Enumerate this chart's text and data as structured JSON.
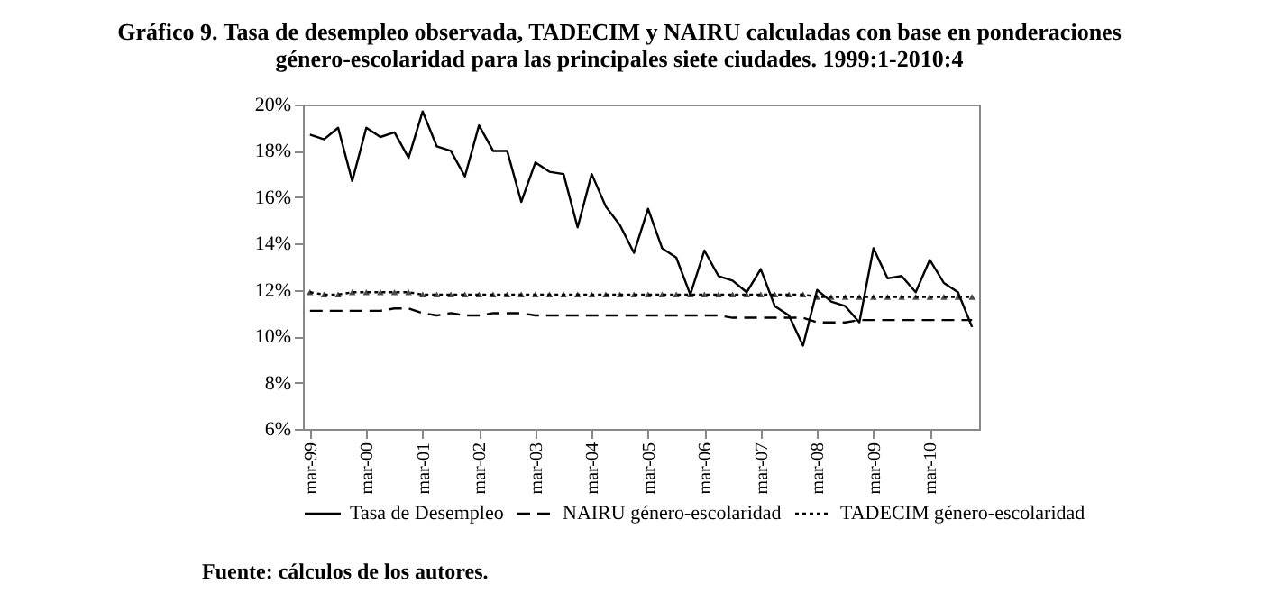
{
  "chart_data": {
    "type": "line",
    "title": "Gráfico 9. Tasa de desempleo observada, TADECIM y NAIRU calculadas con base en ponderaciones género-escolaridad para las principales siete ciudades. 1999:1-2010:4",
    "categories": [
      "mar-99",
      null,
      null,
      null,
      "mar-00",
      null,
      null,
      null,
      "mar-01",
      null,
      null,
      null,
      "mar-02",
      null,
      null,
      null,
      "mar-03",
      null,
      null,
      null,
      "mar-04",
      null,
      null,
      null,
      "mar-05",
      null,
      null,
      null,
      "mar-06",
      null,
      null,
      null,
      "mar-07",
      null,
      null,
      null,
      "mar-08",
      null,
      null,
      null,
      "mar-09",
      null,
      null,
      null,
      "mar-10",
      null,
      null,
      null
    ],
    "series": [
      {
        "name": "Tasa de Desempleo",
        "color": "#000000",
        "line_style": "solid",
        "marker": "none",
        "values": [
          18.7,
          18.5,
          19.0,
          16.7,
          19.0,
          18.6,
          18.8,
          17.7,
          19.7,
          18.2,
          18.0,
          16.9,
          19.1,
          18.0,
          18.0,
          15.8,
          17.5,
          17.1,
          17.0,
          14.7,
          17.0,
          15.6,
          14.8,
          13.6,
          15.5,
          13.8,
          13.4,
          11.8,
          13.7,
          12.6,
          12.4,
          11.9,
          12.9,
          11.3,
          10.9,
          9.6,
          12.0,
          11.5,
          11.3,
          10.6,
          13.8,
          12.5,
          12.6,
          11.9,
          13.3,
          12.3,
          11.9,
          10.4
        ]
      },
      {
        "name": "NAIRU género-escolaridad",
        "color": "#000000",
        "line_style": "dashed",
        "marker": "none",
        "values": [
          11.1,
          11.1,
          11.1,
          11.1,
          11.1,
          11.1,
          11.2,
          11.2,
          11.0,
          10.9,
          11.0,
          10.9,
          10.9,
          11.0,
          11.0,
          11.0,
          10.9,
          10.9,
          10.9,
          10.9,
          10.9,
          10.9,
          10.9,
          10.9,
          10.9,
          10.9,
          10.9,
          10.9,
          10.9,
          10.9,
          10.8,
          10.8,
          10.8,
          10.8,
          10.8,
          10.8,
          10.6,
          10.6,
          10.6,
          10.7,
          10.7,
          10.7,
          10.7,
          10.7,
          10.7,
          10.7,
          10.7,
          10.7
        ]
      },
      {
        "name": "TADECIM género-escolaridad",
        "color": "#000000",
        "line_style": "dotted",
        "marker": "triangle",
        "values": [
          11.9,
          11.8,
          11.8,
          11.9,
          11.9,
          11.9,
          11.9,
          11.9,
          11.8,
          11.8,
          11.8,
          11.8,
          11.8,
          11.8,
          11.8,
          11.8,
          11.8,
          11.8,
          11.8,
          11.8,
          11.8,
          11.8,
          11.8,
          11.8,
          11.8,
          11.8,
          11.8,
          11.8,
          11.8,
          11.8,
          11.8,
          11.8,
          11.8,
          11.8,
          11.8,
          11.8,
          11.7,
          11.7,
          11.7,
          11.7,
          11.7,
          11.7,
          11.7,
          11.7,
          11.7,
          11.7,
          11.7,
          11.7
        ]
      }
    ],
    "ylim": [
      6,
      20
    ],
    "yticks": [
      {
        "value": 6,
        "label": "6%"
      },
      {
        "value": 8,
        "label": "8%"
      },
      {
        "value": 10,
        "label": "10%"
      },
      {
        "value": 12,
        "label": "12%"
      },
      {
        "value": 14,
        "label": "14%"
      },
      {
        "value": 16,
        "label": "16%"
      },
      {
        "value": 18,
        "label": "18%"
      },
      {
        "value": 20,
        "label": "20%"
      }
    ],
    "grid": false,
    "legend": "bottom",
    "annotations": [
      "Fuente: cálculos de los autores."
    ]
  }
}
